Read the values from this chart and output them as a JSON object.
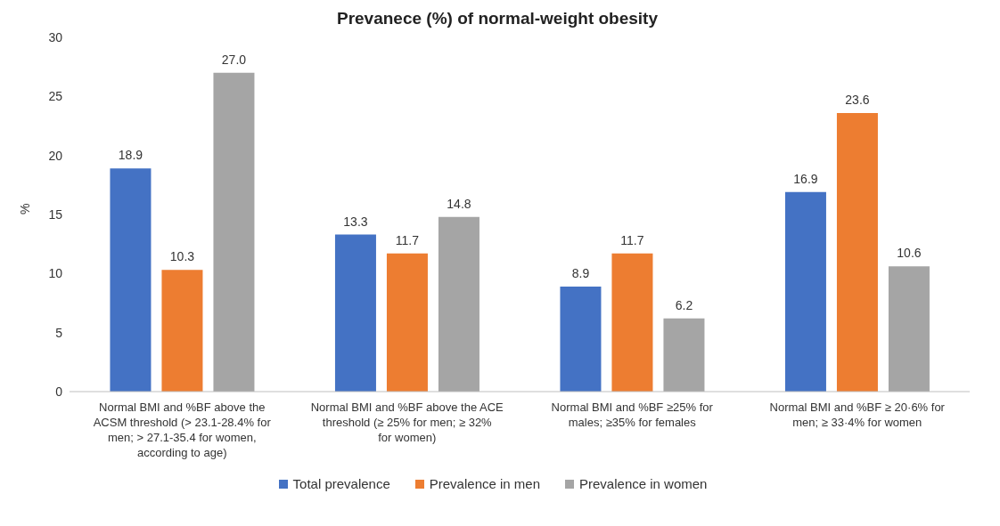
{
  "chart_data": {
    "type": "bar",
    "title": "Prevanece (%) of normal-weight obesity",
    "ylabel": "%",
    "categories": [
      "Normal BMI and %BF above the ACSM threshold (> 23.1-28.4% for men; > 27.1-35.4 for women, according to age)",
      "Normal BMI and %BF above the ACE threshold (≥ 25% for men; ≥ 32% for women)",
      "Normal BMI  and %BF ≥25% for males; ≥35% for females",
      "Normal BMI and %BF ≥ 20·6% for men; ≥ 33·4% for women"
    ],
    "series": [
      {
        "name": "Total prevalence",
        "color": "#4472c4",
        "values": [
          18.9,
          13.3,
          8.9,
          16.9
        ],
        "value_labels": [
          "18.9",
          "13.3",
          "8.9",
          "16.9"
        ]
      },
      {
        "name": "Prevalence in men",
        "color": "#ed7d31",
        "values": [
          10.3,
          11.7,
          11.7,
          23.6
        ],
        "value_labels": [
          "10.3",
          "11.7",
          "11.7",
          "23.6"
        ]
      },
      {
        "name": "Prevalence in women",
        "color": "#a5a5a5",
        "values": [
          27.0,
          14.8,
          6.2,
          10.6
        ],
        "value_labels": [
          "27.0",
          "14.8",
          "6.2",
          "10.6"
        ]
      }
    ],
    "ylim": [
      0,
      30
    ],
    "yticks": [
      0,
      5,
      10,
      15,
      20,
      25,
      30
    ],
    "grid": false,
    "legend": "bottom"
  }
}
